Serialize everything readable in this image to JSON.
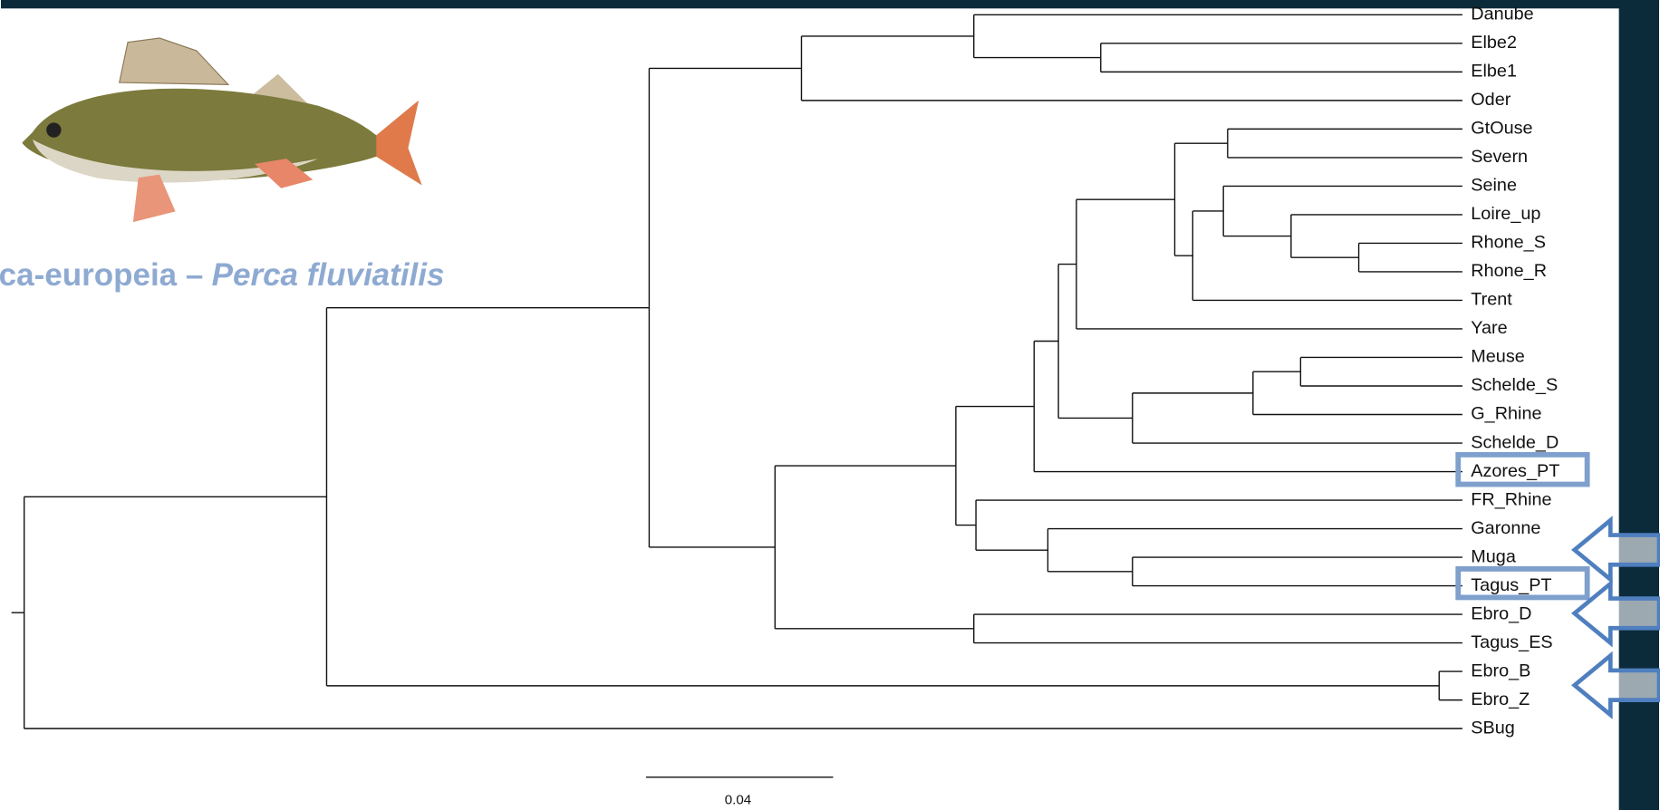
{
  "caption": {
    "text": "ca-europeia –",
    "species": "Perca fluviatilis"
  },
  "tree": {
    "leaves": [
      "Danube",
      "Elbe2",
      "Elbe1",
      "Oder",
      "GtOuse",
      "Severn",
      "Seine",
      "Loire_up",
      "Rhone_S",
      "Rhone_R",
      "Trent",
      "Yare",
      "Meuse",
      "Schelde_S",
      "G_Rhine",
      "Schelde_D",
      "Azores_PT",
      "FR_Rhine",
      "Garonne",
      "Muga",
      "Tagus_PT",
      "Ebro_D",
      "Tagus_ES",
      "Ebro_B",
      "Ebro_Z",
      "SBug"
    ]
  },
  "scale_bar": {
    "label": "0.04"
  }
}
